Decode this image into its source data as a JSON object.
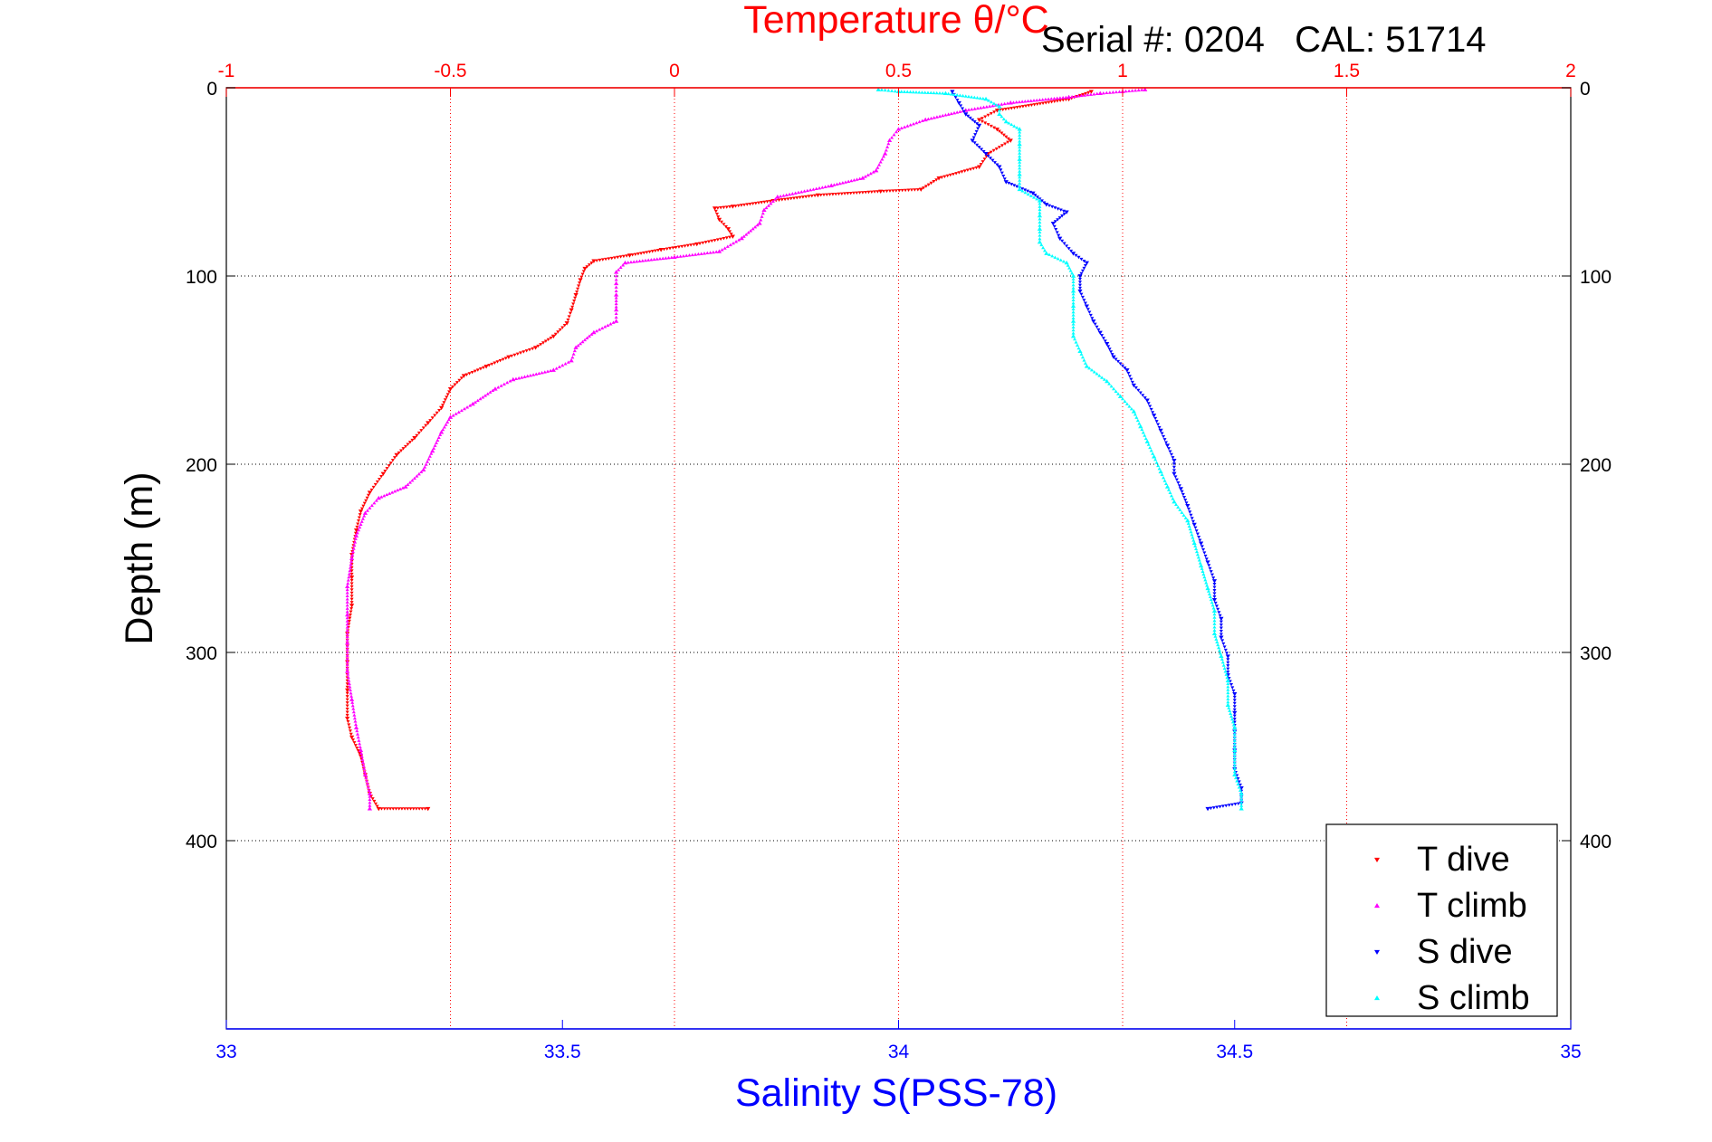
{
  "serial_label": "Serial #: 0204   CAL: 51714",
  "chart_data": {
    "type": "scatter",
    "title": "Temperature θ/°C",
    "top_axis": {
      "label": "Temperature θ/°C",
      "range": [
        -1,
        2
      ],
      "ticks": [
        "-1",
        "-0.5",
        "0",
        "0.5",
        "1",
        "1.5",
        "2"
      ],
      "color": "#ff0000"
    },
    "bottom_axis": {
      "label": "Salinity S(PSS-78)",
      "range": [
        33,
        35
      ],
      "ticks": [
        "33",
        "33.5",
        "34",
        "34.5",
        "35"
      ],
      "color": "#0000ff"
    },
    "y_axis": {
      "label": "Depth (m)",
      "range": [
        0,
        500
      ],
      "reversed": true,
      "ticks": [
        "0",
        "100",
        "200",
        "300",
        "400"
      ]
    },
    "grid": true,
    "legend": {
      "position": "bottom-right",
      "entries": [
        "T dive",
        "T climb",
        "S dive",
        "S climb"
      ]
    },
    "series": [
      {
        "name": "T dive",
        "axis": "temperature",
        "color": "#ff0000",
        "marker": "triangle-down",
        "points": [
          [
            0.93,
            2
          ],
          [
            0.88,
            6
          ],
          [
            0.72,
            12
          ],
          [
            0.68,
            17
          ],
          [
            0.72,
            22
          ],
          [
            0.75,
            28
          ],
          [
            0.7,
            35
          ],
          [
            0.68,
            42
          ],
          [
            0.59,
            48
          ],
          [
            0.55,
            54
          ],
          [
            0.46,
            55
          ],
          [
            0.32,
            57
          ],
          [
            0.22,
            60
          ],
          [
            0.13,
            63
          ],
          [
            0.09,
            64
          ],
          [
            0.1,
            70
          ],
          [
            0.12,
            75
          ],
          [
            0.13,
            79
          ],
          [
            0.05,
            83
          ],
          [
            -0.03,
            86
          ],
          [
            -0.1,
            89
          ],
          [
            -0.18,
            92
          ],
          [
            -0.2,
            96
          ],
          [
            -0.21,
            102
          ],
          [
            -0.22,
            110
          ],
          [
            -0.23,
            118
          ],
          [
            -0.24,
            125
          ],
          [
            -0.27,
            132
          ],
          [
            -0.31,
            138
          ],
          [
            -0.37,
            143
          ],
          [
            -0.42,
            148
          ],
          [
            -0.47,
            153
          ],
          [
            -0.5,
            160
          ],
          [
            -0.52,
            170
          ],
          [
            -0.55,
            178
          ],
          [
            -0.58,
            186
          ],
          [
            -0.62,
            195
          ],
          [
            -0.65,
            205
          ],
          [
            -0.68,
            215
          ],
          [
            -0.7,
            225
          ],
          [
            -0.71,
            235
          ],
          [
            -0.72,
            248
          ],
          [
            -0.72,
            260
          ],
          [
            -0.72,
            275
          ],
          [
            -0.73,
            290
          ],
          [
            -0.73,
            305
          ],
          [
            -0.73,
            320
          ],
          [
            -0.73,
            335
          ],
          [
            -0.72,
            345
          ],
          [
            -0.7,
            355
          ],
          [
            -0.69,
            365
          ],
          [
            -0.68,
            375
          ],
          [
            -0.66,
            383
          ],
          [
            -0.55,
            383
          ]
        ]
      },
      {
        "name": "T climb",
        "axis": "temperature",
        "color": "#ff00ff",
        "marker": "triangle-up",
        "points": [
          [
            -0.68,
            383
          ],
          [
            -0.68,
            375
          ],
          [
            -0.69,
            365
          ],
          [
            -0.7,
            352
          ],
          [
            -0.71,
            340
          ],
          [
            -0.72,
            325
          ],
          [
            -0.73,
            310
          ],
          [
            -0.73,
            295
          ],
          [
            -0.73,
            280
          ],
          [
            -0.73,
            265
          ],
          [
            -0.72,
            250
          ],
          [
            -0.71,
            238
          ],
          [
            -0.69,
            226
          ],
          [
            -0.66,
            218
          ],
          [
            -0.6,
            212
          ],
          [
            -0.56,
            203
          ],
          [
            -0.54,
            193
          ],
          [
            -0.52,
            183
          ],
          [
            -0.5,
            175
          ],
          [
            -0.45,
            168
          ],
          [
            -0.4,
            160
          ],
          [
            -0.36,
            155
          ],
          [
            -0.27,
            150
          ],
          [
            -0.23,
            145
          ],
          [
            -0.22,
            138
          ],
          [
            -0.18,
            130
          ],
          [
            -0.13,
            124
          ],
          [
            -0.13,
            118
          ],
          [
            -0.13,
            110
          ],
          [
            -0.13,
            104
          ],
          [
            -0.13,
            98
          ],
          [
            -0.11,
            93
          ],
          [
            0.0,
            90
          ],
          [
            0.1,
            87
          ],
          [
            0.15,
            80
          ],
          [
            0.19,
            72
          ],
          [
            0.2,
            65
          ],
          [
            0.23,
            58
          ],
          [
            0.35,
            52
          ],
          [
            0.42,
            48
          ],
          [
            0.45,
            44
          ],
          [
            0.47,
            35
          ],
          [
            0.48,
            28
          ],
          [
            0.5,
            22
          ],
          [
            0.56,
            17
          ],
          [
            0.65,
            12
          ],
          [
            0.75,
            8
          ],
          [
            0.88,
            5
          ],
          [
            0.95,
            3
          ],
          [
            1.0,
            2
          ],
          [
            1.05,
            1
          ]
        ]
      },
      {
        "name": "S dive",
        "axis": "salinity",
        "color": "#0000ff",
        "marker": "triangle-down",
        "points": [
          [
            34.08,
            2
          ],
          [
            34.09,
            8
          ],
          [
            34.1,
            14
          ],
          [
            34.12,
            20
          ],
          [
            34.11,
            28
          ],
          [
            34.13,
            35
          ],
          [
            34.15,
            42
          ],
          [
            34.16,
            50
          ],
          [
            34.2,
            56
          ],
          [
            34.22,
            62
          ],
          [
            34.25,
            66
          ],
          [
            34.23,
            72
          ],
          [
            34.24,
            80
          ],
          [
            34.26,
            88
          ],
          [
            34.28,
            93
          ],
          [
            34.27,
            100
          ],
          [
            34.27,
            108
          ],
          [
            34.28,
            116
          ],
          [
            34.29,
            124
          ],
          [
            34.3,
            130
          ],
          [
            34.31,
            136
          ],
          [
            34.32,
            143
          ],
          [
            34.34,
            150
          ],
          [
            34.35,
            158
          ],
          [
            34.37,
            166
          ],
          [
            34.38,
            174
          ],
          [
            34.39,
            182
          ],
          [
            34.4,
            190
          ],
          [
            34.41,
            198
          ],
          [
            34.41,
            205
          ],
          [
            34.42,
            213
          ],
          [
            34.43,
            222
          ],
          [
            34.44,
            232
          ],
          [
            34.45,
            242
          ],
          [
            34.46,
            252
          ],
          [
            34.47,
            262
          ],
          [
            34.47,
            272
          ],
          [
            34.48,
            282
          ],
          [
            34.48,
            292
          ],
          [
            34.49,
            302
          ],
          [
            34.49,
            312
          ],
          [
            34.5,
            322
          ],
          [
            34.5,
            332
          ],
          [
            34.5,
            342
          ],
          [
            34.5,
            352
          ],
          [
            34.5,
            362
          ],
          [
            34.51,
            372
          ],
          [
            34.51,
            380
          ],
          [
            34.46,
            383
          ]
        ]
      },
      {
        "name": "S climb",
        "axis": "salinity",
        "color": "#00ffff",
        "marker": "triangle-up",
        "points": [
          [
            34.51,
            383
          ],
          [
            34.51,
            375
          ],
          [
            34.5,
            365
          ],
          [
            34.5,
            352
          ],
          [
            34.5,
            340
          ],
          [
            34.49,
            328
          ],
          [
            34.49,
            315
          ],
          [
            34.48,
            302
          ],
          [
            34.47,
            290
          ],
          [
            34.47,
            278
          ],
          [
            34.46,
            266
          ],
          [
            34.45,
            254
          ],
          [
            34.44,
            242
          ],
          [
            34.43,
            230
          ],
          [
            34.41,
            220
          ],
          [
            34.4,
            212
          ],
          [
            34.39,
            204
          ],
          [
            34.38,
            196
          ],
          [
            34.37,
            188
          ],
          [
            34.36,
            180
          ],
          [
            34.35,
            172
          ],
          [
            34.33,
            164
          ],
          [
            34.31,
            156
          ],
          [
            34.28,
            148
          ],
          [
            34.27,
            140
          ],
          [
            34.26,
            132
          ],
          [
            34.26,
            124
          ],
          [
            34.26,
            116
          ],
          [
            34.26,
            108
          ],
          [
            34.26,
            100
          ],
          [
            34.25,
            93
          ],
          [
            34.22,
            88
          ],
          [
            34.21,
            82
          ],
          [
            34.21,
            75
          ],
          [
            34.21,
            68
          ],
          [
            34.21,
            60
          ],
          [
            34.18,
            54
          ],
          [
            34.18,
            46
          ],
          [
            34.18,
            38
          ],
          [
            34.18,
            30
          ],
          [
            34.18,
            22
          ],
          [
            34.16,
            18
          ],
          [
            34.15,
            14
          ],
          [
            34.15,
            10
          ],
          [
            34.13,
            6
          ],
          [
            34.07,
            3
          ],
          [
            34.0,
            2
          ],
          [
            33.97,
            1
          ]
        ]
      }
    ]
  }
}
